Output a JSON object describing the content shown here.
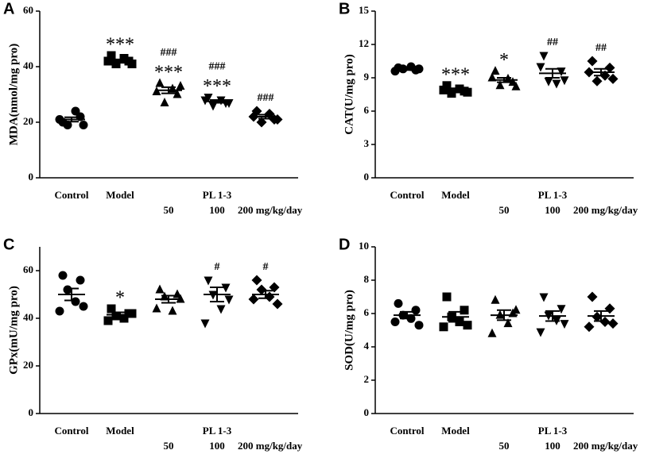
{
  "chart_data": [
    {
      "panel": "A",
      "type": "dotplot",
      "ylabel": "MDA(nmol/mg pro)",
      "categories": [
        "Control",
        "Model",
        "50",
        "100",
        "200 mg/kg/day"
      ],
      "group_label": "PL 1-3",
      "ylim": [
        0,
        60
      ],
      "yticks": [
        0,
        20,
        40,
        60
      ],
      "color": "#000000",
      "markers": [
        "circle",
        "square",
        "triangle",
        "triangle-down",
        "diamond"
      ],
      "points": [
        [
          20,
          22,
          19,
          24,
          21,
          19
        ],
        [
          44,
          42,
          41,
          43,
          42,
          41
        ],
        [
          34,
          30,
          27,
          32,
          31,
          33
        ],
        [
          29,
          27,
          26,
          28,
          28,
          27
        ],
        [
          24,
          21,
          20,
          23,
          22,
          21
        ]
      ],
      "means": [
        21,
        42,
        31.5,
        27.5,
        22
      ],
      "sems": [
        0.8,
        0.6,
        1.1,
        0.5,
        0.7
      ],
      "annotations": [
        null,
        [
          "***"
        ],
        [
          "###",
          "***"
        ],
        [
          "###",
          "***"
        ],
        [
          "###"
        ]
      ]
    },
    {
      "panel": "B",
      "type": "dotplot",
      "ylabel": "CAT(U/mg pro)",
      "categories": [
        "Control",
        "Model",
        "50",
        "100",
        "200 mg/kg/day"
      ],
      "group_label": "PL 1-3",
      "ylim": [
        0,
        15
      ],
      "yticks": [
        0,
        3,
        6,
        9,
        12,
        15
      ],
      "color": "#000000",
      "markers": [
        "circle",
        "square",
        "triangle",
        "triangle-down",
        "diamond"
      ],
      "points": [
        [
          9.9,
          9.7,
          9.8,
          10.0,
          9.6,
          9.8
        ],
        [
          8.3,
          7.8,
          7.6,
          8.0,
          7.9,
          7.7
        ],
        [
          9.6,
          8.6,
          8.3,
          8.9,
          9.0,
          8.2
        ],
        [
          11.0,
          9.6,
          8.7,
          8.5,
          10.0,
          8.8
        ],
        [
          10.5,
          9.9,
          8.7,
          9.2,
          9.5,
          8.9
        ]
      ],
      "means": [
        9.8,
        7.9,
        8.8,
        9.4,
        9.5
      ],
      "sems": [
        0.1,
        0.15,
        0.2,
        0.4,
        0.3
      ],
      "annotations": [
        null,
        [
          "***"
        ],
        [
          "*"
        ],
        [
          "##"
        ],
        [
          "##"
        ]
      ]
    },
    {
      "panel": "C",
      "type": "dotplot",
      "ylabel": "GPx(mU/mg pro)",
      "categories": [
        "Control",
        "Model",
        "50",
        "100",
        "200 mg/kg/day"
      ],
      "group_label": "PL 1-3",
      "ylim": [
        0,
        70
      ],
      "yticks": [
        0,
        20,
        40,
        60
      ],
      "color": "#000000",
      "markers": [
        "circle",
        "square",
        "triangle",
        "triangle-down",
        "diamond"
      ],
      "points": [
        [
          58,
          56,
          52,
          47,
          43,
          45
        ],
        [
          44,
          42,
          41,
          40,
          39,
          42
        ],
        [
          52,
          50,
          49,
          43,
          44,
          48
        ],
        [
          56,
          53,
          50,
          44,
          38,
          48
        ],
        [
          56,
          53,
          52,
          49,
          48,
          46
        ]
      ],
      "means": [
        50,
        41.5,
        48,
        50,
        50
      ],
      "sems": [
        2.5,
        1.0,
        1.5,
        3.0,
        1.6
      ],
      "annotations": [
        null,
        [
          "*"
        ],
        null,
        [
          "#"
        ],
        [
          "#"
        ]
      ]
    },
    {
      "panel": "D",
      "type": "dotplot",
      "ylabel": "SOD(U/mg pro)",
      "categories": [
        "Control",
        "Model",
        "50",
        "100",
        "200 mg/kg/day"
      ],
      "group_label": "PL 1-3",
      "ylim": [
        0,
        10
      ],
      "yticks": [
        0,
        2,
        4,
        6,
        8,
        10
      ],
      "color": "#000000",
      "markers": [
        "circle",
        "square",
        "triangle",
        "triangle-down",
        "diamond"
      ],
      "points": [
        [
          6.6,
          6.2,
          5.9,
          5.7,
          5.5,
          5.3
        ],
        [
          7.0,
          6.2,
          5.8,
          5.5,
          5.2,
          5.3
        ],
        [
          6.8,
          6.0,
          5.9,
          5.4,
          4.8,
          6.2
        ],
        [
          7.0,
          6.3,
          5.9,
          5.6,
          4.9,
          5.4
        ],
        [
          7.0,
          6.3,
          5.8,
          5.5,
          5.2,
          5.4
        ]
      ],
      "means": [
        5.9,
        5.8,
        5.9,
        5.85,
        5.85
      ],
      "sems": [
        0.2,
        0.3,
        0.3,
        0.3,
        0.3
      ],
      "annotations": null
    }
  ]
}
